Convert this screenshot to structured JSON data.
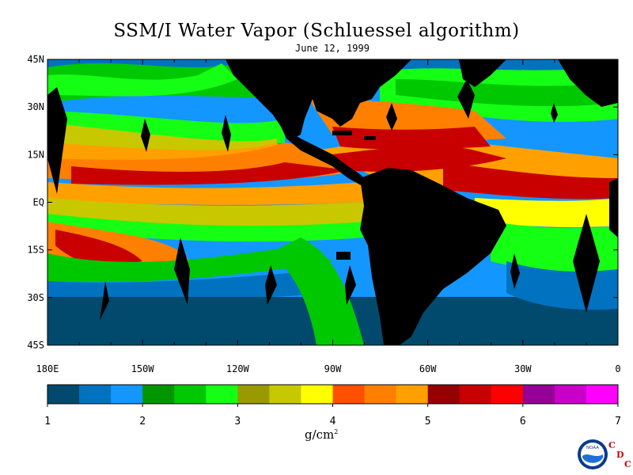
{
  "title": "SSM/I Water Vapor (Schluessel algorithm)",
  "date": "June 12, 1999",
  "lat_labels": [
    "45N",
    "30N",
    "15N",
    "EQ",
    "15S",
    "30S",
    "45S"
  ],
  "lon_labels": [
    "180E",
    "150W",
    "120W",
    "90W",
    "60W",
    "30W",
    "0"
  ],
  "colorbar": {
    "unit_base": "g/cm",
    "unit_exp": "2",
    "labels": [
      "1",
      "2",
      "3",
      "4",
      "5",
      "6",
      "7"
    ],
    "colors": [
      "#014a6e",
      "#0072c0",
      "#1496ff",
      "#009600",
      "#00c800",
      "#14ff14",
      "#9a9a00",
      "#c8c800",
      "#ffff00",
      "#ff5000",
      "#ff8000",
      "#ffa000",
      "#960000",
      "#c80000",
      "#ff0000",
      "#960096",
      "#c800c8",
      "#ff00ff"
    ]
  },
  "logo": {
    "text": "NOAA",
    "letters": [
      "C",
      "D",
      "C"
    ]
  },
  "colors": {
    "land": "#000000",
    "gap": "#000000"
  }
}
